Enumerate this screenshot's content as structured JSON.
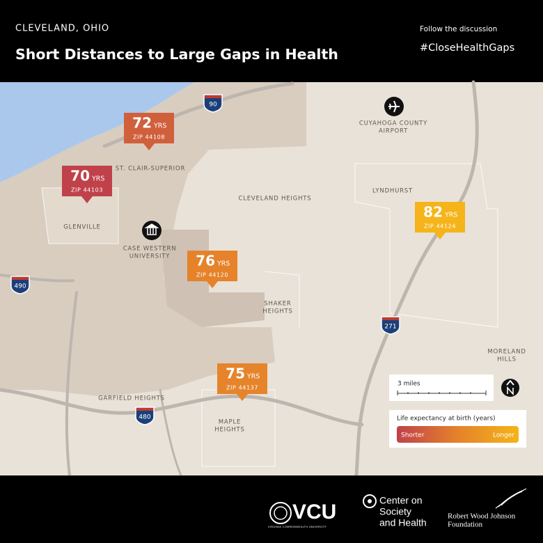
{
  "header": {
    "location": "CLEVELAND, OHIO",
    "title": "Short Distances to Large Gaps in Health",
    "follow": "Follow the discussion",
    "hashtag": "#CloseHealthGaps"
  },
  "callouts": [
    {
      "years": 72,
      "unit": "YRS",
      "zip": "ZIP 44108",
      "color": "#d0603c"
    },
    {
      "years": 70,
      "unit": "YRS",
      "zip": "ZIP 44103",
      "color": "#c0414a"
    },
    {
      "years": 76,
      "unit": "YRS",
      "zip": "ZIP 44120",
      "color": "#e5822a"
    },
    {
      "years": 75,
      "unit": "YRS",
      "zip": "ZIP 44137",
      "color": "#e5842a"
    },
    {
      "years": 82,
      "unit": "YRS",
      "zip": "ZIP 44124",
      "color": "#f5b41a"
    }
  ],
  "places": [
    {
      "lines": [
        "ST. CLAIR-SUPERIOR"
      ]
    },
    {
      "lines": [
        "GLENVILLE"
      ]
    },
    {
      "lines": [
        "CASE WESTERN",
        "UNIVERSITY"
      ]
    },
    {
      "lines": [
        "CLEVELAND HEIGHTS"
      ]
    },
    {
      "lines": [
        "LYNDHURST"
      ]
    },
    {
      "lines": [
        "CUYAHOGA COUNTY",
        "AIRPORT"
      ]
    },
    {
      "lines": [
        "SHAKER",
        "HEIGHTS"
      ]
    },
    {
      "lines": [
        "MORELAND",
        "HILLS"
      ]
    },
    {
      "lines": [
        "GARFIELD HEIGHTS"
      ]
    },
    {
      "lines": [
        "MAPLE",
        "HEIGHTS"
      ]
    }
  ],
  "highways": [
    "90",
    "490",
    "271",
    "480"
  ],
  "scale": "3 miles",
  "legend": {
    "title": "Life expectancy at birth (years)",
    "low": "Shorter",
    "high": "Longer"
  },
  "footer": {
    "vcu": "VCU",
    "vcu_sub": "VIRGINIA COMMONWEALTH UNIVERSITY",
    "center": [
      "Center on",
      "Society",
      "and Health"
    ],
    "rwjf": [
      "Robert Wood Johnson",
      "Foundation"
    ]
  }
}
